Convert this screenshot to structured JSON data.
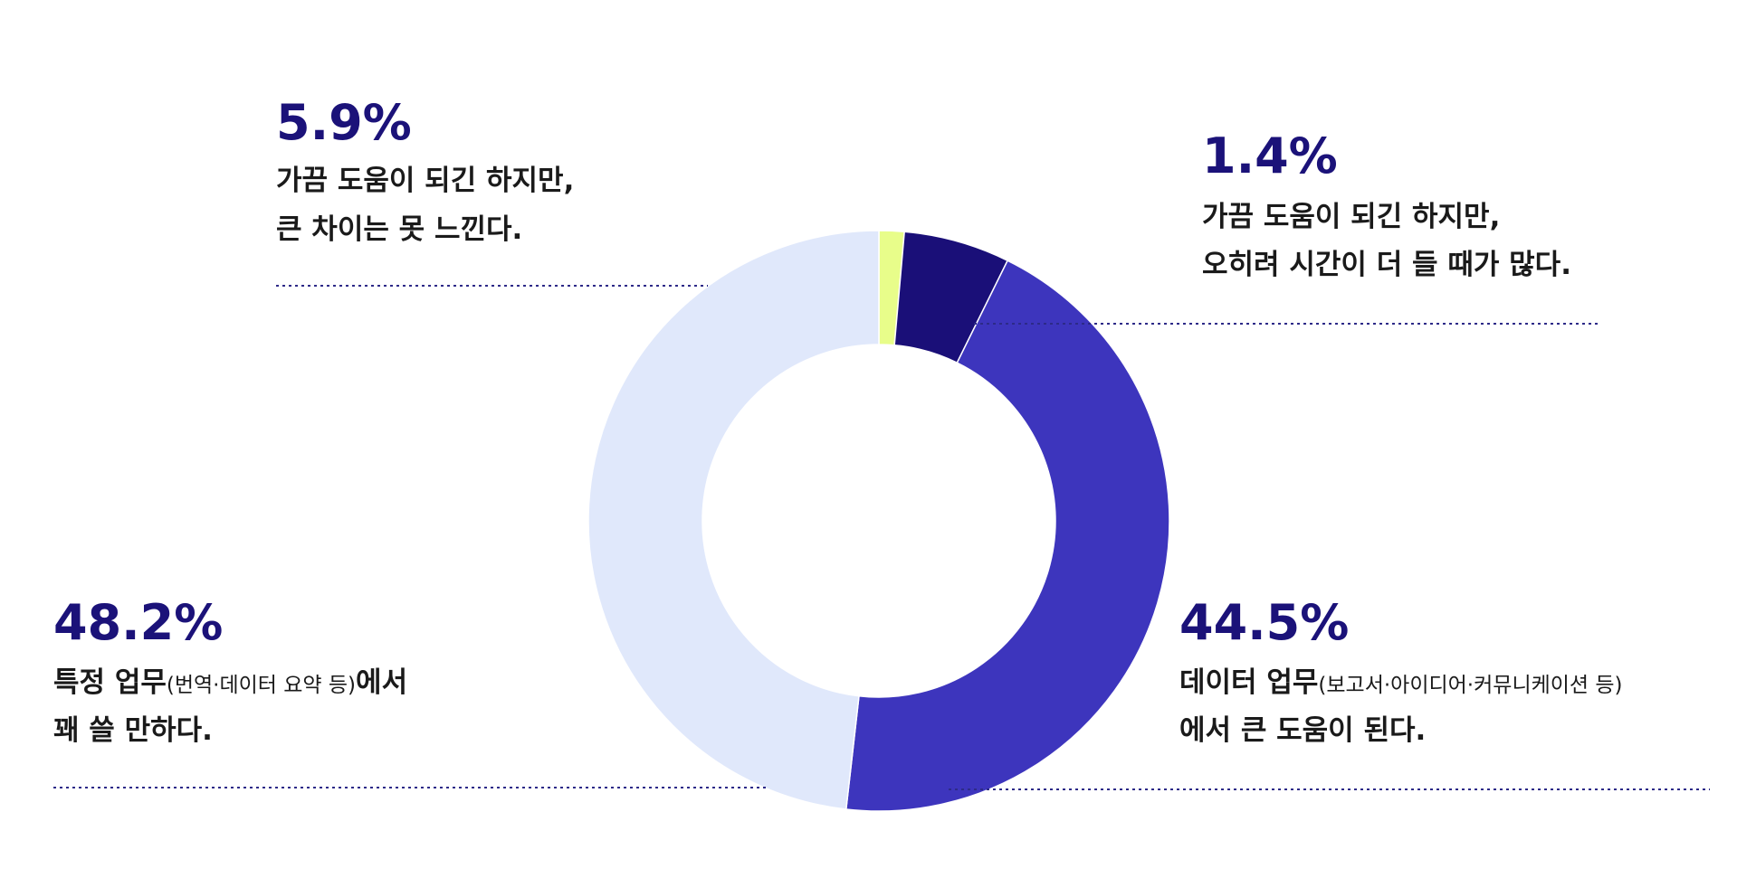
{
  "chart_data": {
    "type": "pie",
    "donut": true,
    "values": [
      1.4,
      5.9,
      44.5,
      48.2
    ],
    "value_labels": [
      "1.4%",
      "5.9%",
      "44.5%",
      "48.2%"
    ],
    "colors": [
      "#e8fd8a",
      "#1a0f78",
      "#3d35bd",
      "#e0e8fb"
    ],
    "descriptions": [
      [
        [
          "가끔 도움이 되긴 하지만,"
        ],
        [
          "오히려 시간이 더 들 때가 많다."
        ]
      ],
      [
        [
          "가끔 도움이 되긴 하지만,"
        ],
        [
          "큰 차이는 못 느낀다."
        ]
      ],
      [
        [
          "데이터 업무",
          "(보고서·아이디어·커뮤니케이션 등)"
        ],
        [
          "에서 큰 도움이 된다."
        ]
      ],
      [
        [
          "특정 업무",
          "(번역·데이터 요약 등)",
          "에서"
        ],
        [
          "꽤 쓸 만하다."
        ]
      ]
    ]
  }
}
